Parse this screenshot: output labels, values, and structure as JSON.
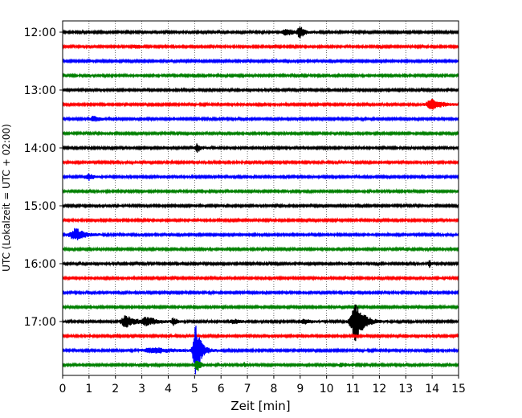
{
  "chart_data": {
    "type": "line",
    "title": "",
    "xlabel": "Zeit  [min]",
    "ylabel": "UTC (Lokalzeit = UTC + 02:00)",
    "xlim": [
      0,
      15
    ],
    "xticks": [
      0,
      1,
      2,
      3,
      4,
      5,
      6,
      7,
      8,
      9,
      10,
      11,
      12,
      13,
      14,
      15
    ],
    "yticks": [
      {
        "label": "12:00",
        "row": 0
      },
      {
        "label": "13:00",
        "row": 4
      },
      {
        "label": "14:00",
        "row": 8
      },
      {
        "label": "15:00",
        "row": 12
      },
      {
        "label": "16:00",
        "row": 16
      },
      {
        "label": "17:00",
        "row": 20
      }
    ],
    "grid": {
      "x": true,
      "style": "dotted"
    },
    "row_colors": [
      "#000000",
      "#ff0000",
      "#0000ff",
      "#008000"
    ],
    "rows": [
      {
        "start": "12:00",
        "events": [
          {
            "t": 8.5,
            "amp": 0.35,
            "dur": 0.5
          },
          {
            "t": 9.0,
            "amp": 0.7,
            "dur": 0.25
          }
        ]
      },
      {
        "start": "12:15",
        "events": [
          {
            "t": 2.8,
            "amp": 0.2,
            "dur": 0.3
          }
        ]
      },
      {
        "start": "12:30",
        "events": []
      },
      {
        "start": "12:45",
        "events": []
      },
      {
        "start": "13:00",
        "events": []
      },
      {
        "start": "13:15",
        "events": [
          {
            "t": 14.0,
            "amp": 0.6,
            "dur": 0.6
          }
        ]
      },
      {
        "start": "13:30",
        "events": [
          {
            "t": 1.2,
            "amp": 0.3,
            "dur": 0.4
          }
        ]
      },
      {
        "start": "13:45",
        "events": []
      },
      {
        "start": "14:00",
        "events": [
          {
            "t": 5.1,
            "amp": 0.45,
            "dur": 0.25
          }
        ]
      },
      {
        "start": "14:15",
        "events": []
      },
      {
        "start": "14:30",
        "events": [
          {
            "t": 1.0,
            "amp": 0.35,
            "dur": 0.3
          }
        ]
      },
      {
        "start": "14:45",
        "events": []
      },
      {
        "start": "15:00",
        "events": []
      },
      {
        "start": "15:15",
        "events": []
      },
      {
        "start": "15:30",
        "events": [
          {
            "t": 0.5,
            "amp": 0.7,
            "dur": 0.6
          }
        ]
      },
      {
        "start": "15:45",
        "events": []
      },
      {
        "start": "16:00",
        "events": [
          {
            "t": 13.9,
            "amp": 0.6,
            "dur": 0.1
          }
        ]
      },
      {
        "start": "16:15",
        "events": []
      },
      {
        "start": "16:30",
        "events": []
      },
      {
        "start": "16:45",
        "events": []
      },
      {
        "start": "17:00",
        "events": [
          {
            "t": 2.4,
            "amp": 0.7,
            "dur": 0.5
          },
          {
            "t": 3.2,
            "amp": 0.5,
            "dur": 0.6
          },
          {
            "t": 4.2,
            "amp": 0.4,
            "dur": 0.2
          },
          {
            "t": 6.5,
            "amp": 0.25,
            "dur": 0.4
          },
          {
            "t": 9.2,
            "amp": 0.3,
            "dur": 0.4
          },
          {
            "t": 11.1,
            "amp": 2.2,
            "dur": 0.5
          }
        ]
      },
      {
        "start": "17:15",
        "events": []
      },
      {
        "start": "17:30",
        "events": [
          {
            "t": 3.5,
            "amp": 0.3,
            "dur": 1.2
          },
          {
            "t": 5.05,
            "amp": 3.0,
            "dur": 0.3
          }
        ]
      },
      {
        "start": "17:45",
        "events": [
          {
            "t": 5.1,
            "amp": 0.8,
            "dur": 0.2
          },
          {
            "t": 6.9,
            "amp": 0.25,
            "dur": 0.1
          },
          {
            "t": 10.6,
            "amp": 0.2,
            "dur": 0.4
          }
        ]
      }
    ]
  }
}
